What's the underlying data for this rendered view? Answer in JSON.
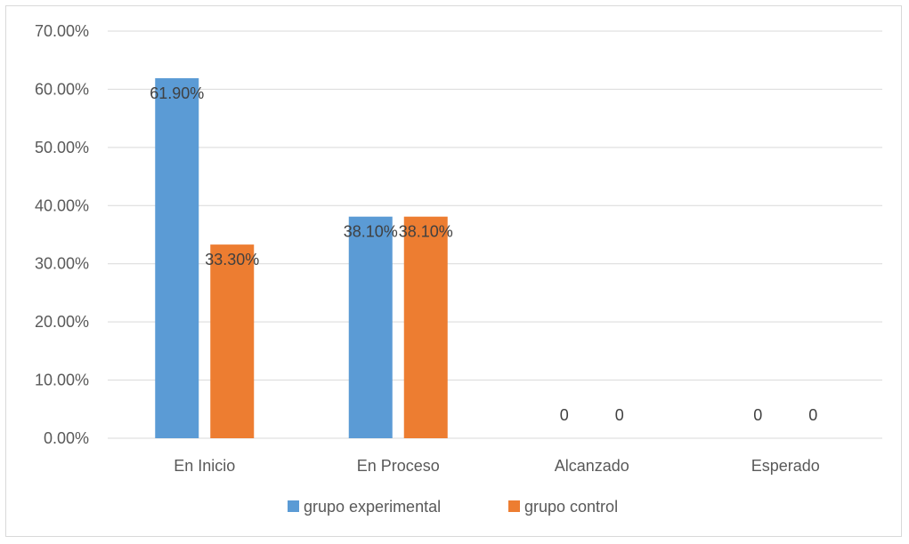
{
  "chart_data": {
    "type": "bar",
    "categories": [
      "En Inicio",
      "En Proceso",
      "Alcanzado",
      "Esperado"
    ],
    "series": [
      {
        "name": "grupo experimental",
        "color": "#5b9bd5",
        "values": [
          61.9,
          38.1,
          0,
          0
        ],
        "labels": [
          "61.90%",
          "38.10%",
          "0",
          "0"
        ]
      },
      {
        "name": "grupo control",
        "color": "#ed7d31",
        "values": [
          33.3,
          38.1,
          0,
          0
        ],
        "labels": [
          "33.30%",
          "38.10%",
          "0",
          "0"
        ]
      }
    ],
    "ylim": [
      0,
      70
    ],
    "yticks": [
      "0.00%",
      "10.00%",
      "20.00%",
      "30.00%",
      "40.00%",
      "50.00%",
      "60.00%",
      "70.00%"
    ],
    "ytick_values": [
      0,
      10,
      20,
      30,
      40,
      50,
      60,
      70
    ],
    "grid": true,
    "legend_position": "bottom",
    "colors": {
      "gridline": "#d9d9d9",
      "axis_text": "#595959",
      "label_text": "#404040",
      "border": "#d9d9d9"
    }
  }
}
